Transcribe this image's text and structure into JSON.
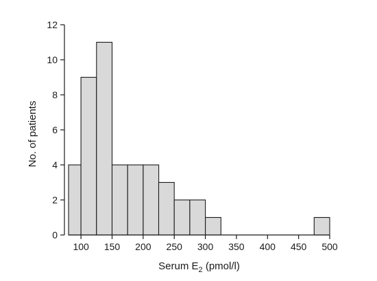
{
  "chart_data": {
    "type": "bar",
    "title": "",
    "xlabel": "Serum E",
    "xlabel_subscript": "2",
    "xlabel_suffix": " (pmol/l)",
    "ylabel": "No. of patients",
    "xlim": [
      80,
      500
    ],
    "ylim": [
      0,
      12
    ],
    "xticks": [
      "100",
      "150",
      "200",
      "250",
      "300",
      "350",
      "400",
      "450",
      "500"
    ],
    "yticks": [
      "0",
      "2",
      "4",
      "6",
      "8",
      "10",
      "12"
    ],
    "bin_width": 25,
    "bars": [
      {
        "x0": 80,
        "x1": 100,
        "count": 4
      },
      {
        "x0": 100,
        "x1": 125,
        "count": 9
      },
      {
        "x0": 125,
        "x1": 150,
        "count": 11
      },
      {
        "x0": 150,
        "x1": 175,
        "count": 4
      },
      {
        "x0": 175,
        "x1": 200,
        "count": 4
      },
      {
        "x0": 200,
        "x1": 225,
        "count": 4
      },
      {
        "x0": 225,
        "x1": 250,
        "count": 3
      },
      {
        "x0": 250,
        "x1": 275,
        "count": 2
      },
      {
        "x0": 275,
        "x1": 300,
        "count": 2
      },
      {
        "x0": 300,
        "x1": 325,
        "count": 1
      },
      {
        "x0": 475,
        "x1": 500,
        "count": 1
      }
    ],
    "bar_fill": "#d9d9d9",
    "bar_stroke": "#1a1a1a",
    "grid": false,
    "legend": "none"
  }
}
